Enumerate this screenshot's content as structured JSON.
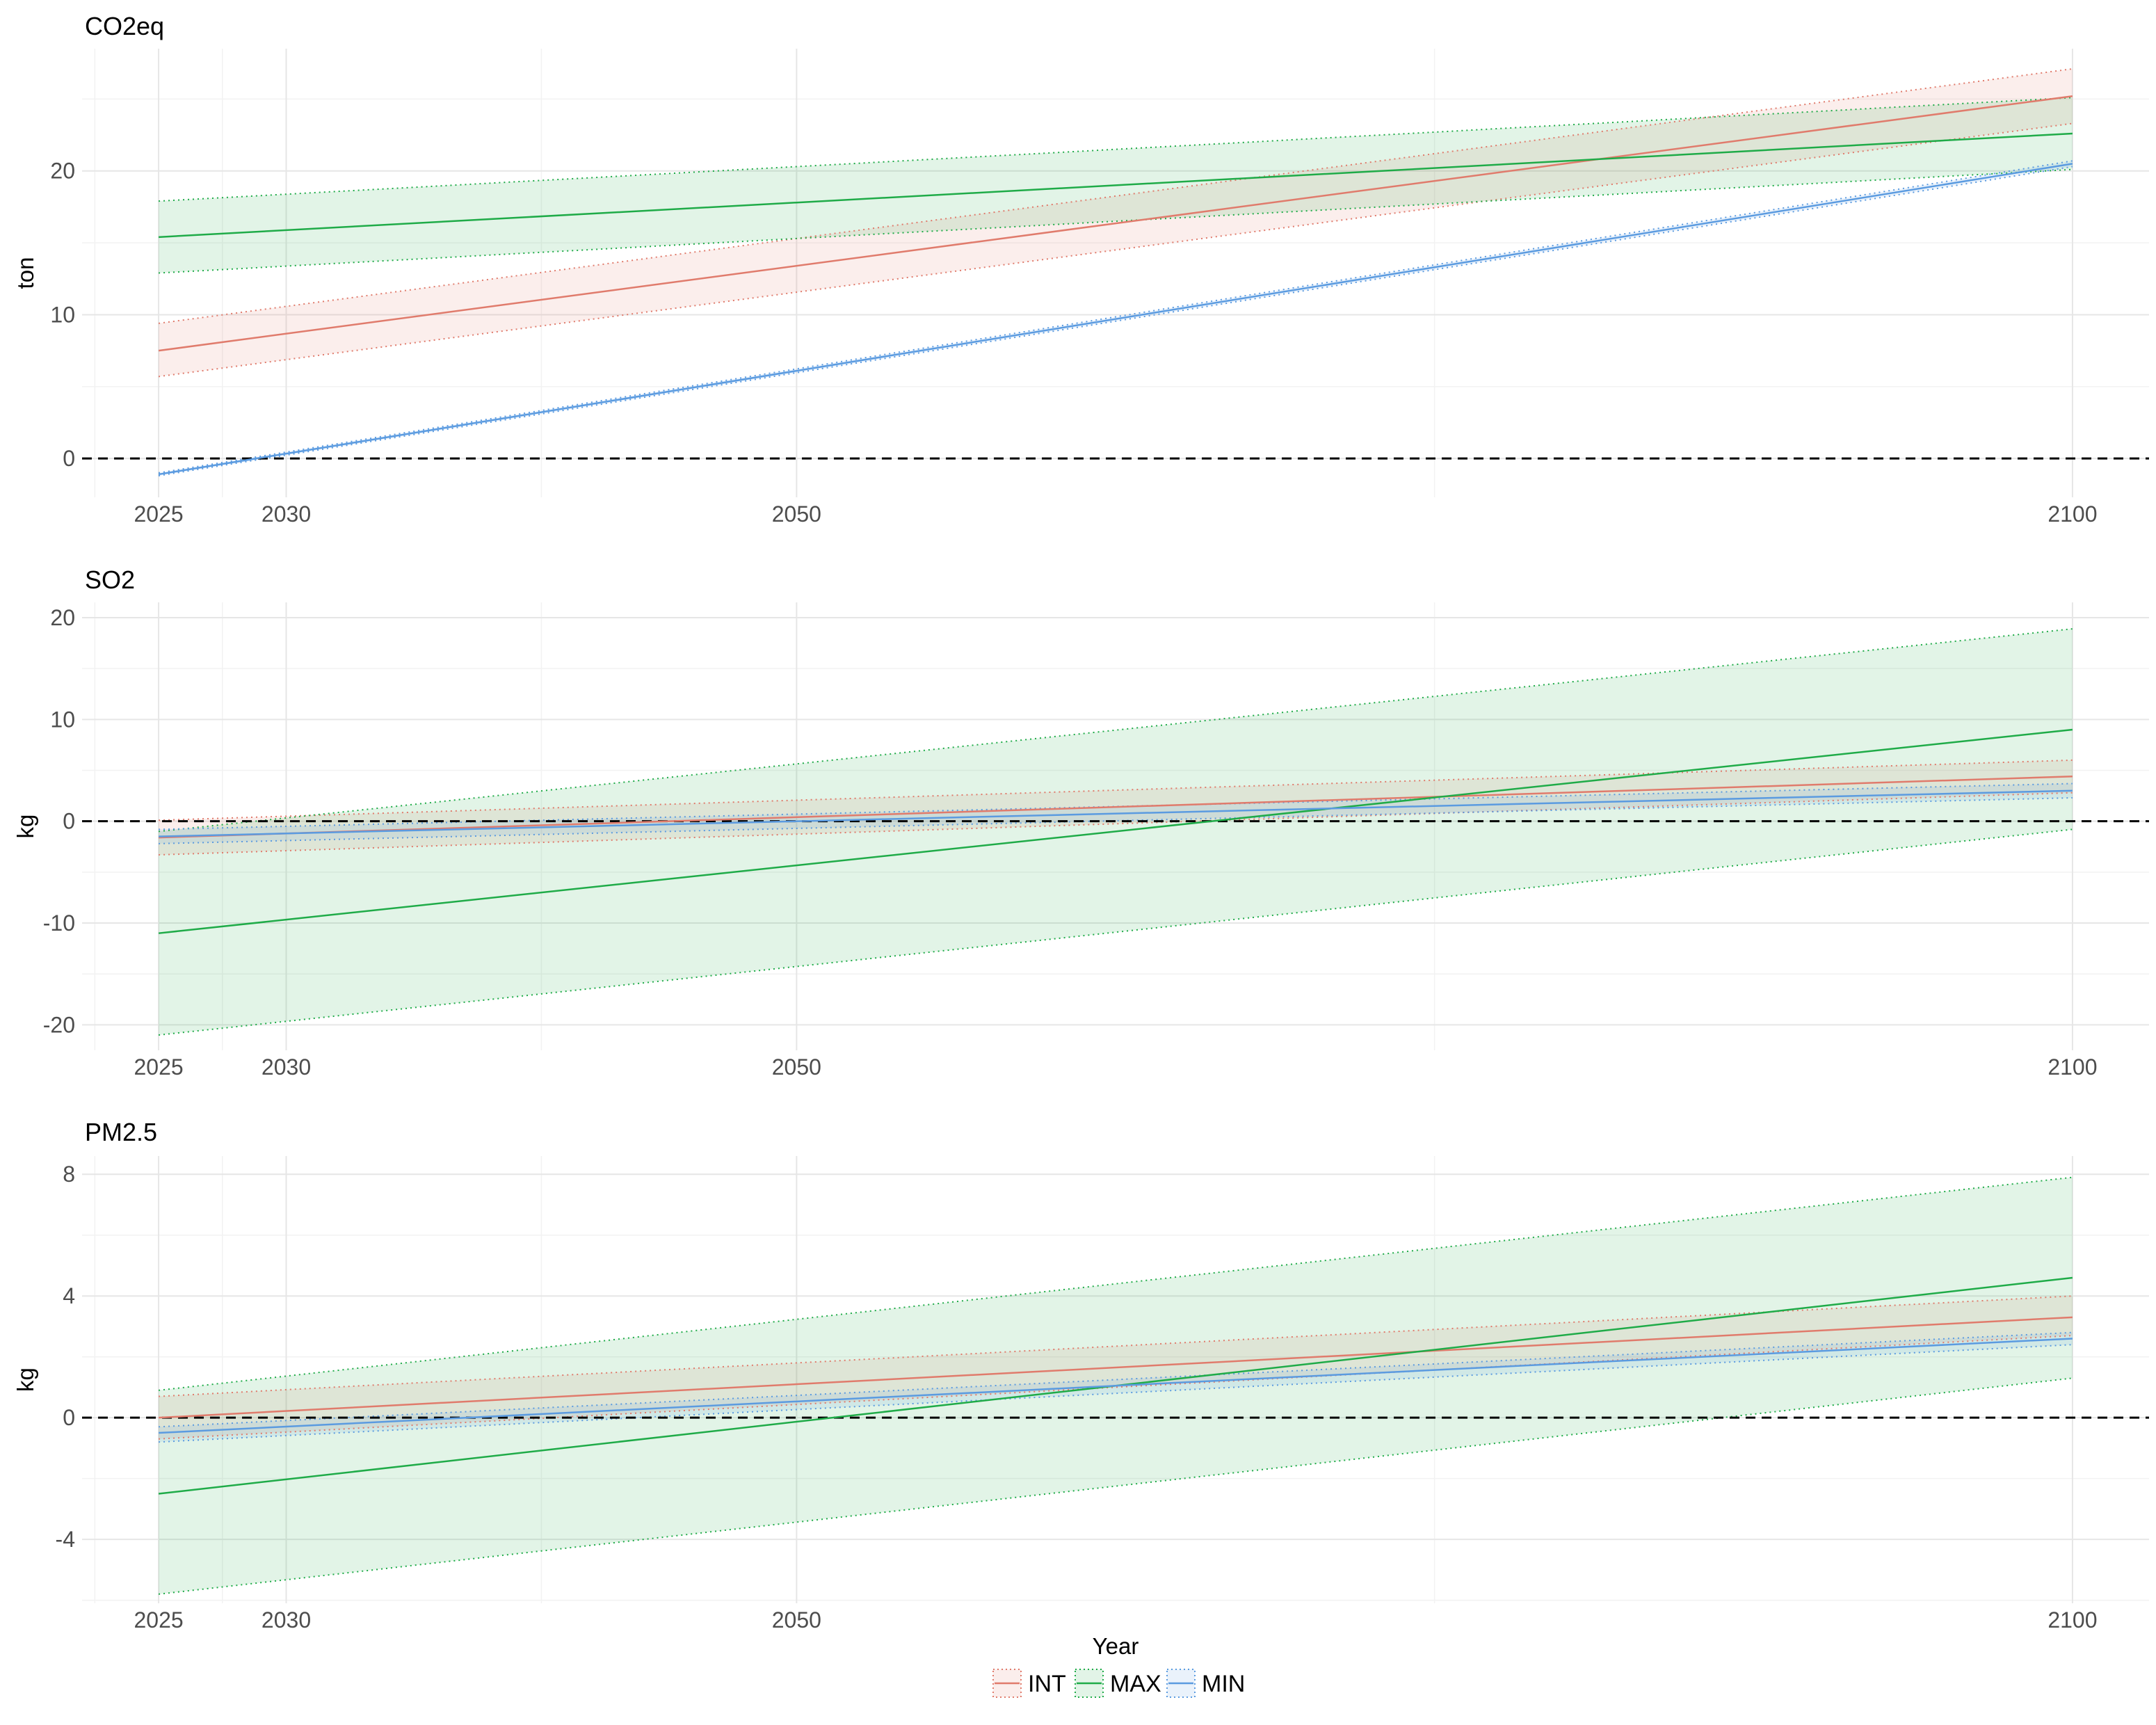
{
  "chart_data": {
    "type": "line",
    "xlabel": "Year",
    "x_ticks": [
      2025,
      2030,
      2050,
      2100
    ],
    "xlim": [
      2022,
      2103
    ],
    "reference_line": {
      "y": 0,
      "style": "dashed",
      "color": "#000000"
    },
    "legend": {
      "position": "bottom",
      "entries": [
        {
          "label": "INT",
          "color": "#e07b6c"
        },
        {
          "label": "MAX",
          "color": "#1fab48"
        },
        {
          "label": "MIN",
          "color": "#5b9be0"
        }
      ]
    },
    "panels": [
      {
        "title": "CO2eq",
        "ylabel": "ton",
        "ylim": [
          -2.7,
          28.5
        ],
        "y_ticks": [
          0,
          10,
          20
        ],
        "x": [
          2025,
          2100
        ],
        "series": [
          {
            "name": "INT",
            "color": "#e07b6c",
            "values": [
              7.5,
              25.2
            ],
            "lower": [
              5.7,
              23.3
            ],
            "upper": [
              9.4,
              27.1
            ]
          },
          {
            "name": "MAX",
            "color": "#1fab48",
            "values": [
              15.4,
              22.6
            ],
            "lower": [
              12.9,
              20.1
            ],
            "upper": [
              17.9,
              25.1
            ]
          },
          {
            "name": "MIN",
            "color": "#5b9be0",
            "values": [
              -1.1,
              20.5
            ],
            "lower": [
              -1.2,
              20.3
            ],
            "upper": [
              -1.0,
              20.7
            ]
          }
        ]
      },
      {
        "title": "SO2",
        "ylabel": "kg",
        "ylim": [
          -22.5,
          21.5
        ],
        "y_ticks": [
          -20,
          -10,
          0,
          10,
          20
        ],
        "x": [
          2025,
          2100
        ],
        "series": [
          {
            "name": "INT",
            "color": "#e07b6c",
            "values": [
              -1.6,
              4.4
            ],
            "lower": [
              -3.3,
              2.8
            ],
            "upper": [
              0.1,
              6.0
            ]
          },
          {
            "name": "MAX",
            "color": "#1fab48",
            "values": [
              -11.0,
              9.0
            ],
            "lower": [
              -21.0,
              -0.8
            ],
            "upper": [
              -1.0,
              18.9
            ]
          },
          {
            "name": "MIN",
            "color": "#5b9be0",
            "values": [
              -1.5,
              3.0
            ],
            "lower": [
              -2.2,
              2.3
            ],
            "upper": [
              -0.8,
              3.7
            ]
          }
        ]
      },
      {
        "title": "PM2.5",
        "ylabel": "kg",
        "ylim": [
          -6.1,
          8.6
        ],
        "y_ticks": [
          -4,
          0,
          4,
          8
        ],
        "x": [
          2025,
          2100
        ],
        "series": [
          {
            "name": "INT",
            "color": "#e07b6c",
            "values": [
              0.0,
              3.3
            ],
            "lower": [
              -0.7,
              2.7
            ],
            "upper": [
              0.7,
              4.0
            ]
          },
          {
            "name": "MAX",
            "color": "#1fab48",
            "values": [
              -2.5,
              4.6
            ],
            "lower": [
              -5.8,
              1.3
            ],
            "upper": [
              0.9,
              7.9
            ]
          },
          {
            "name": "MIN",
            "color": "#5b9be0",
            "values": [
              -0.5,
              2.6
            ],
            "lower": [
              -0.8,
              2.4
            ],
            "upper": [
              -0.3,
              2.8
            ]
          }
        ]
      }
    ]
  }
}
